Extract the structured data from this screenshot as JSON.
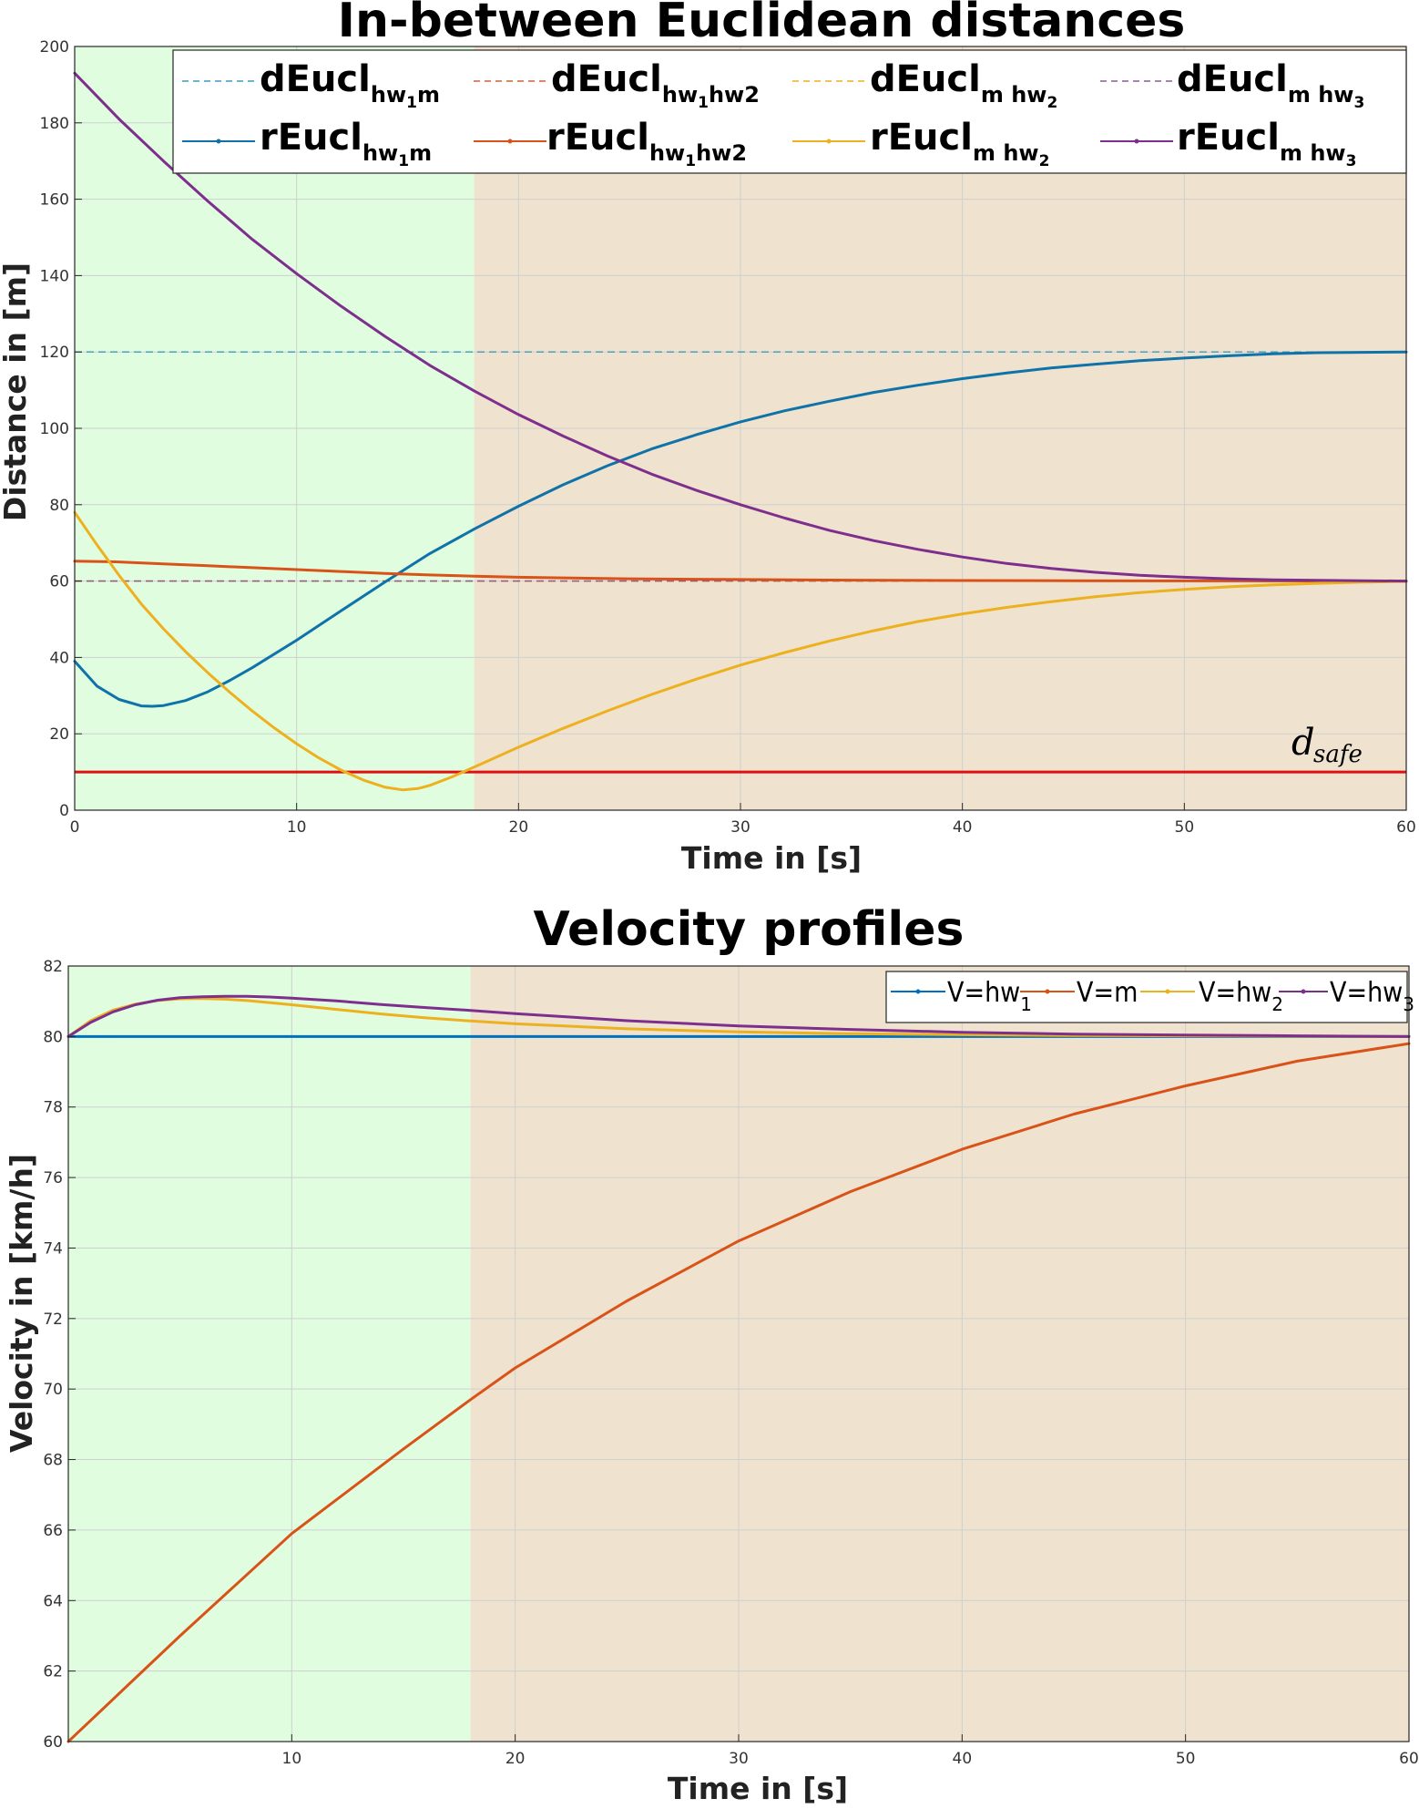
{
  "chart_data": [
    {
      "type": "line",
      "title": "In-between Euclidean distances",
      "xlabel": "Time in [s]",
      "ylabel": "Distance in [m]",
      "xlim": [
        0,
        60
      ],
      "ylim": [
        0,
        200
      ],
      "xticks": [
        0,
        10,
        20,
        30,
        40,
        50,
        60
      ],
      "yticks": [
        0,
        20,
        40,
        60,
        80,
        100,
        120,
        140,
        160,
        180,
        200
      ],
      "grid": true,
      "legend_placement": "top",
      "regions": [
        {
          "x0": 0,
          "x1": 18,
          "color": "#e0fde0"
        },
        {
          "x0": 18,
          "x1": 60,
          "color": "#efe3cf"
        }
      ],
      "reference_lines": [
        {
          "name": "dEucl_hw1m",
          "legend_main": "dEucl",
          "legend_sub": "hw",
          "legend_sub_idx": "1",
          "legend_sub_tail": "m",
          "y": 120,
          "color": "#3e9ac0",
          "dashed": true
        },
        {
          "name": "dEucl_hw1hw2",
          "legend_main": "dEucl",
          "legend_sub": "hw",
          "legend_sub_idx": "1",
          "legend_sub_tail": "hw2",
          "y": 60,
          "color": "#c7643a",
          "dashed": true
        },
        {
          "name": "dEucl_mhw2",
          "legend_main": "dEucl",
          "legend_sub": "m hw",
          "legend_sub_idx": "2",
          "legend_sub_tail": "",
          "y": 60,
          "color": "#edb120",
          "dashed": true
        },
        {
          "name": "dEucl_mhw3",
          "legend_main": "dEucl",
          "legend_sub": "m hw",
          "legend_sub_idx": "3",
          "legend_sub_tail": "",
          "y": 60,
          "color": "#8e5a9a",
          "dashed": true
        }
      ],
      "safe_line": {
        "y": 10,
        "color": "#e01010",
        "label_main": "d",
        "label_sub": "safe"
      },
      "series": [
        {
          "name": "rEucl_hw1m",
          "color": "#0f72a8",
          "x": [
            0,
            1,
            2,
            3,
            3.5,
            4,
            5,
            6,
            7,
            8,
            10,
            12,
            14,
            15,
            16,
            18,
            20,
            22,
            24,
            26,
            28,
            30,
            32,
            34,
            36,
            38,
            40,
            42,
            44,
            46,
            48,
            50,
            52,
            54,
            56,
            58,
            60
          ],
          "y": [
            39,
            32.5,
            29,
            27.3,
            27.2,
            27.4,
            28.7,
            31,
            34,
            37.3,
            44.5,
            52.2,
            59.8,
            63.5,
            67.2,
            73.6,
            79.6,
            85.2,
            90.2,
            94.6,
            98.3,
            101.7,
            104.6,
            107.1,
            109.4,
            111.3,
            113,
            114.5,
            115.8,
            116.8,
            117.7,
            118.4,
            119,
            119.5,
            119.8,
            119.9,
            120
          ]
        },
        {
          "name": "rEucl_hw1hw2",
          "color": "#d95319",
          "x": [
            0,
            2,
            4,
            6,
            8,
            10,
            12,
            14,
            16,
            18,
            20,
            25,
            30,
            35,
            40,
            45,
            50,
            55,
            60
          ],
          "y": [
            65.2,
            65,
            64.5,
            64,
            63.5,
            63,
            62.5,
            62,
            61.6,
            61.3,
            61,
            60.6,
            60.4,
            60.25,
            60.15,
            60.1,
            60.05,
            60.02,
            60
          ]
        },
        {
          "name": "rEucl_mhw2",
          "color": "#edb120",
          "x": [
            0,
            1,
            2,
            3,
            4,
            5,
            6,
            7,
            8,
            9,
            10,
            11,
            12,
            13,
            14,
            14.8,
            15.5,
            16,
            17,
            18,
            20,
            22,
            24,
            26,
            28,
            30,
            32,
            34,
            36,
            38,
            40,
            42,
            44,
            46,
            48,
            50,
            52,
            54,
            56,
            58,
            60
          ],
          "y": [
            78,
            69.5,
            61.5,
            54,
            47.5,
            41.5,
            36,
            30.8,
            26,
            21.5,
            17.4,
            13.7,
            10.5,
            7.9,
            6,
            5.3,
            5.7,
            6.5,
            8.7,
            11.3,
            16.5,
            21.4,
            26,
            30.3,
            34.3,
            38,
            41.3,
            44.3,
            47,
            49.4,
            51.4,
            53.1,
            54.6,
            55.9,
            57,
            57.8,
            58.5,
            59,
            59.4,
            59.7,
            59.9
          ]
        },
        {
          "name": "rEucl_mhw3",
          "color": "#7e2f8e",
          "x": [
            0,
            2,
            4,
            6,
            8,
            10,
            12,
            14,
            16,
            18,
            20,
            22,
            24,
            26,
            28,
            30,
            32,
            34,
            36,
            38,
            40,
            42,
            44,
            46,
            48,
            50,
            52,
            54,
            56,
            58,
            60
          ],
          "y": [
            193,
            181,
            170,
            159.5,
            149.5,
            140.5,
            132,
            124,
            116.5,
            109.8,
            103.6,
            98,
            92.8,
            88,
            83.8,
            80,
            76.5,
            73.3,
            70.6,
            68.3,
            66.3,
            64.6,
            63.3,
            62.3,
            61.5,
            61,
            60.6,
            60.3,
            60.2,
            60.1,
            60
          ]
        }
      ],
      "legend": [
        {
          "main": "rEucl",
          "sub": "hw",
          "idx": "1",
          "tail": "m"
        },
        {
          "main": "rEucl",
          "sub": "hw",
          "idx": "1",
          "tail": "hw2"
        },
        {
          "main": "rEucl",
          "sub": "m hw",
          "idx": "2",
          "tail": ""
        },
        {
          "main": "rEucl",
          "sub": "m hw",
          "idx": "3",
          "tail": ""
        }
      ]
    },
    {
      "type": "line",
      "title": "Velocity profiles",
      "xlabel": "Time in [s]",
      "ylabel": "Velocity in [km/h]",
      "xlim": [
        0,
        60
      ],
      "ylim": [
        60,
        82
      ],
      "xticks": [
        10,
        20,
        30,
        40,
        50,
        60
      ],
      "yticks": [
        60,
        62,
        64,
        66,
        68,
        70,
        72,
        74,
        76,
        78,
        80,
        82
      ],
      "grid": true,
      "legend_placement": "top-right",
      "regions": [
        {
          "x0": 0,
          "x1": 18,
          "color": "#e0fde0"
        },
        {
          "x0": 18,
          "x1": 60,
          "color": "#efe3cf"
        }
      ],
      "series": [
        {
          "name": "V=hw1",
          "legend_main": "V=hw",
          "legend_sub": "1",
          "color": "#0072bd",
          "x": [
            0,
            60
          ],
          "y": [
            80,
            80
          ]
        },
        {
          "name": "V=m",
          "legend_main": "V=m",
          "legend_sub": "",
          "color": "#d95319",
          "x": [
            0,
            5,
            10,
            15,
            18,
            20,
            25,
            30,
            35,
            40,
            45,
            50,
            55,
            60
          ],
          "y": [
            60,
            63,
            65.9,
            68.3,
            69.7,
            70.6,
            72.5,
            74.2,
            75.6,
            76.8,
            77.8,
            78.6,
            79.3,
            79.8
          ]
        },
        {
          "name": "V=hw2",
          "legend_main": "V=hw",
          "legend_sub": "2",
          "color": "#edb120",
          "x": [
            0,
            1,
            2,
            3,
            4,
            5,
            6,
            7,
            8,
            10,
            12,
            14,
            16,
            18,
            20,
            25,
            30,
            35,
            40,
            45,
            50,
            55,
            60
          ],
          "y": [
            80,
            80.45,
            80.75,
            80.92,
            81.02,
            81.07,
            81.08,
            81.06,
            81.02,
            80.9,
            80.77,
            80.64,
            80.53,
            80.44,
            80.36,
            80.22,
            80.13,
            80.08,
            80.05,
            80.03,
            80.02,
            80.01,
            80
          ]
        },
        {
          "name": "V=hw3",
          "legend_main": "V=hw",
          "legend_sub": "3",
          "color": "#7e2f8e",
          "x": [
            0,
            1,
            2,
            3,
            4,
            5,
            6,
            7,
            8,
            9,
            10,
            12,
            14,
            16,
            18,
            20,
            25,
            30,
            35,
            40,
            45,
            50,
            55,
            60
          ],
          "y": [
            80,
            80.4,
            80.7,
            80.9,
            81.03,
            81.1,
            81.13,
            81.14,
            81.14,
            81.12,
            81.09,
            81.01,
            80.91,
            80.82,
            80.74,
            80.65,
            80.45,
            80.3,
            80.2,
            80.12,
            80.07,
            80.04,
            80.02,
            80
          ]
        }
      ]
    }
  ]
}
